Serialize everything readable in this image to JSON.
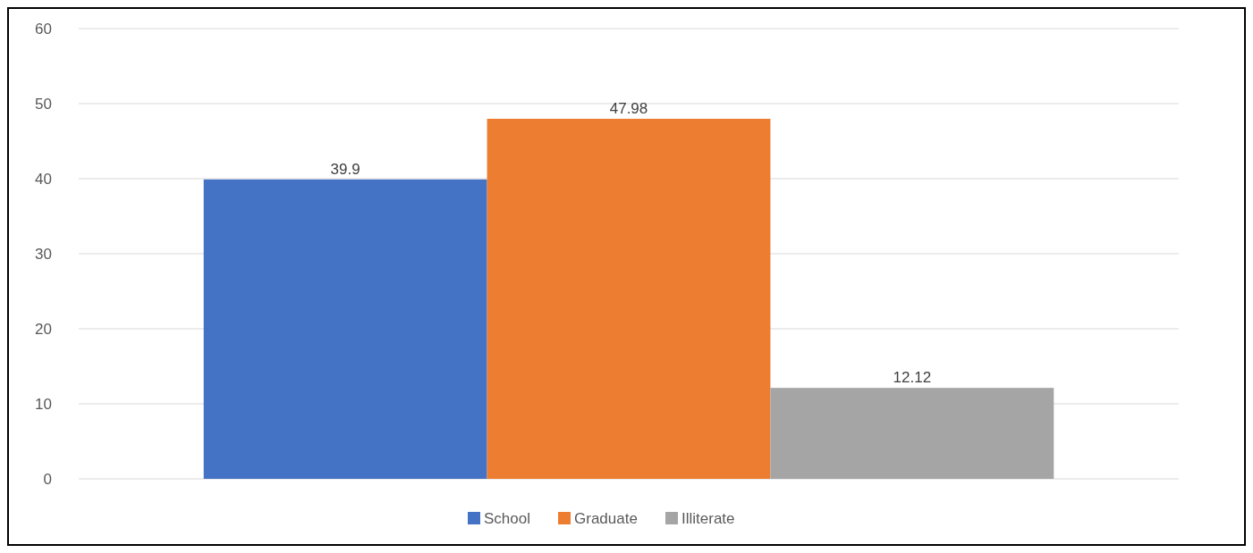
{
  "chart_data": {
    "type": "bar",
    "categories": [
      null
    ],
    "series": [
      {
        "name": "School",
        "color": "#4472c4",
        "values": [
          39.9
        ]
      },
      {
        "name": "Graduate",
        "color": "#ed7d31",
        "values": [
          47.98
        ]
      },
      {
        "name": "Illiterate",
        "color": "#a5a5a5",
        "values": [
          12.12
        ]
      }
    ],
    "ylim": [
      0,
      60
    ],
    "yticks": [
      0,
      10,
      20,
      30,
      40,
      50,
      60
    ],
    "grid": "y",
    "data_labels": true,
    "legend": "bottom"
  }
}
